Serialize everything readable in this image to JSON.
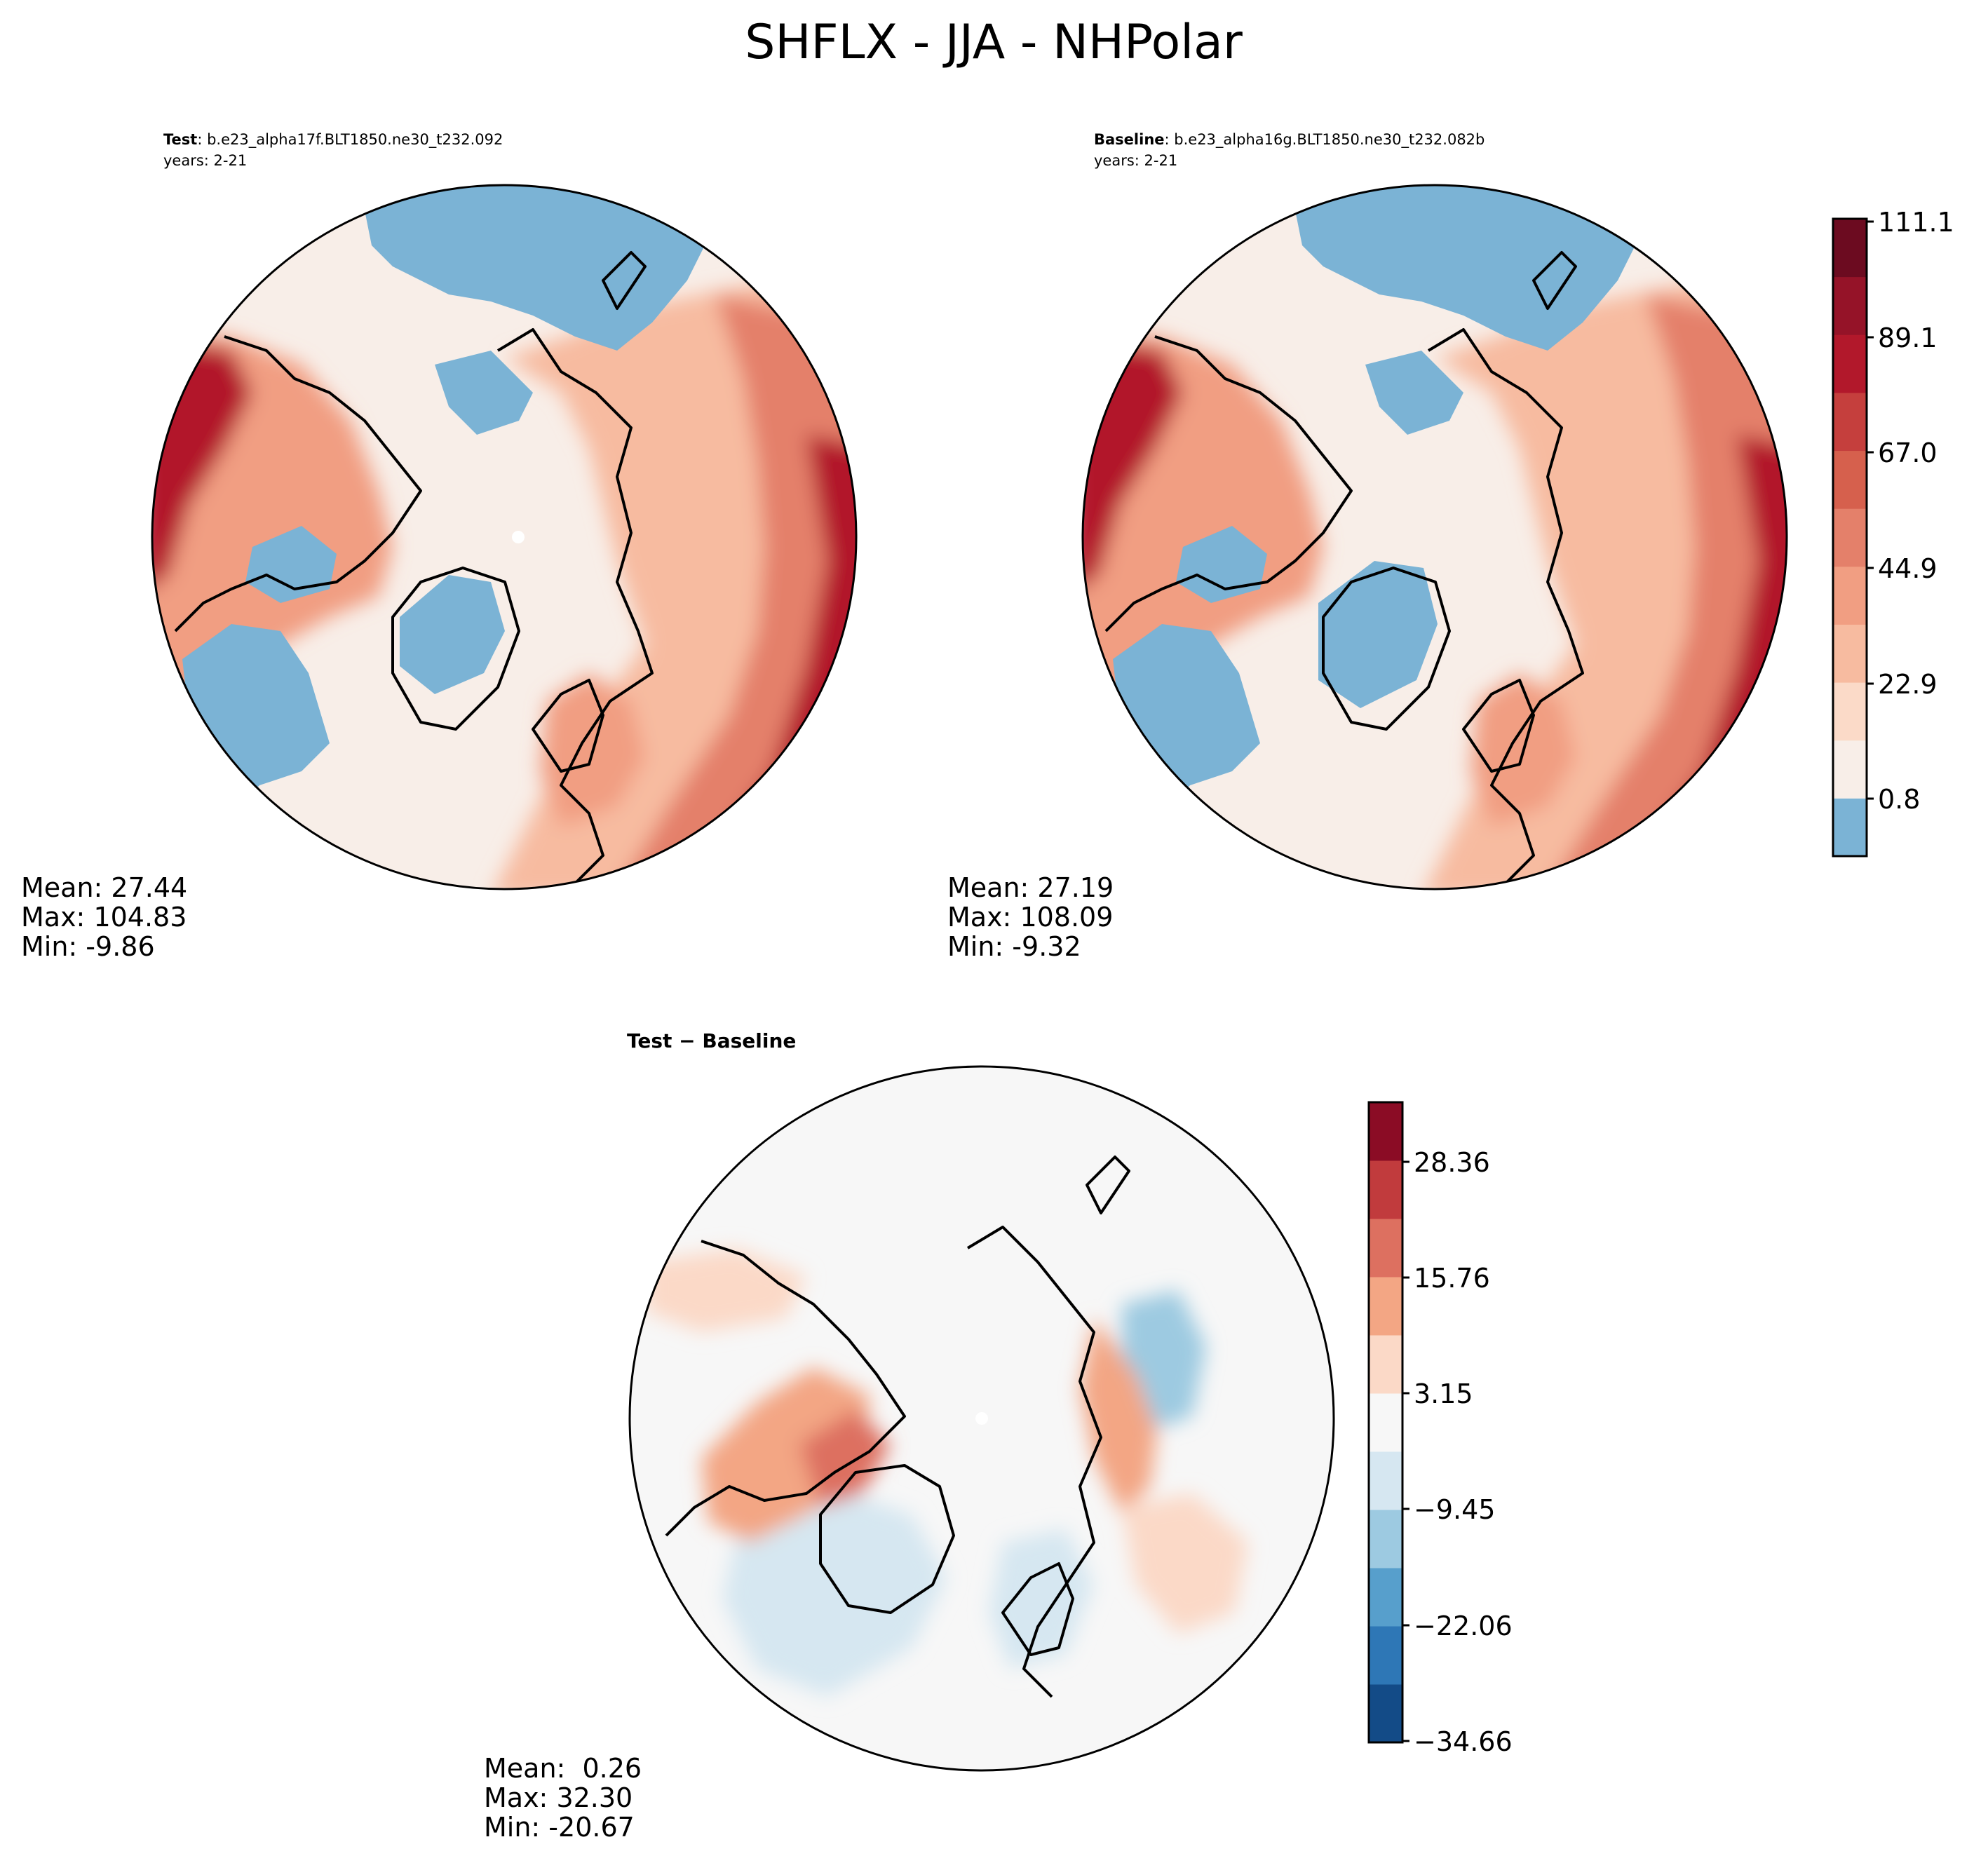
{
  "figure_title": "SHFLX - JJA - NHPolar",
  "chart_data": [
    {
      "type": "heatmap",
      "name": "test",
      "label_bold": "Test",
      "label_rest": ": b.e23_alpha17f.BLT1850.ne30_t232.092",
      "years": "years: 2-21",
      "stats": {
        "mean": "Mean: 27.44",
        "max": "Max: 104.83",
        "min": "Min: -9.86"
      },
      "projection": "North Polar Stereographic",
      "variable": "SHFLX",
      "season": "JJA"
    },
    {
      "type": "heatmap",
      "name": "baseline",
      "label_bold": "Baseline",
      "label_rest": ": b.e23_alpha16g.BLT1850.ne30_t232.082b",
      "years": "years: 2-21",
      "stats": {
        "mean": "Mean: 27.19",
        "max": "Max: 108.09",
        "min": "Min: -9.32"
      },
      "projection": "North Polar Stereographic",
      "colorbar": {
        "ticks": [
          "0.8",
          "22.9",
          "44.9",
          "67.0",
          "89.1",
          "111.1"
        ],
        "levels": 11,
        "colors": [
          "#7bb3d5",
          "#f8eee8",
          "#fbdac8",
          "#f7bba0",
          "#f19e82",
          "#e4806a",
          "#d6604d",
          "#c53f3d",
          "#b2182b",
          "#951328",
          "#6c0b20"
        ]
      }
    },
    {
      "type": "heatmap",
      "name": "difference",
      "label_bold": "Test − Baseline",
      "stats": {
        "mean": "Mean:  0.26",
        "max": "Max: 32.30",
        "min": "Min: -20.67"
      },
      "projection": "North Polar Stereographic",
      "colorbar": {
        "ticks": [
          "28.36",
          "15.76",
          "3.15",
          "−9.45",
          "−22.06",
          "−34.66"
        ],
        "levels": 11,
        "colors": [
          "#134b87",
          "#2e77b6",
          "#579fcc",
          "#9dcae1",
          "#d6e7f1",
          "#f7f7f7",
          "#fbd9c7",
          "#f3a684",
          "#dd7060",
          "#c13b3d",
          "#8b0c25"
        ]
      }
    }
  ]
}
